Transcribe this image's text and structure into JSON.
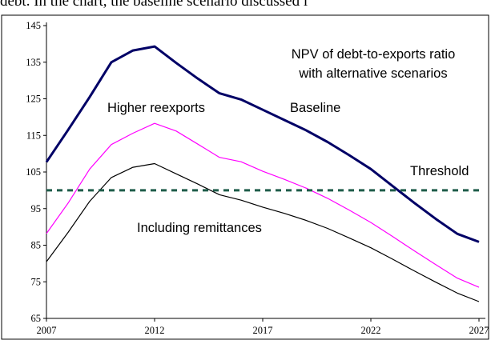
{
  "page_text_fragment": "debt. In the chart, the baseline scenario discussed i",
  "colors": {
    "baseline": "#000066",
    "higher_reexports": "#ff00ff",
    "including_remittances": "#000000",
    "threshold": "#1f5c4a"
  },
  "chart_data": {
    "type": "line",
    "title": "NPV of debt-to-exports ratio with alternative scenarios",
    "title_lines": [
      "NPV of debt-to-exports ratio",
      "with alternative scenarios"
    ],
    "xlabel": "",
    "ylabel": "",
    "xlim": [
      2007,
      2027
    ],
    "ylim": [
      65,
      145
    ],
    "x_ticks": [
      "2007",
      "2012",
      "2017",
      "2022",
      "2027"
    ],
    "y_ticks": [
      "65",
      "75",
      "85",
      "95",
      "105",
      "115",
      "125",
      "135",
      "145"
    ],
    "grid": false,
    "x": [
      2007,
      2008,
      2009,
      2010,
      2011,
      2012,
      2013,
      2014,
      2015,
      2016,
      2017,
      2018,
      2019,
      2020,
      2021,
      2022,
      2023,
      2024,
      2025,
      2026,
      2027
    ],
    "series": [
      {
        "name": "Baseline",
        "values": [
          107.7,
          116.5,
          125.5,
          135,
          138.2,
          139.3,
          134.8,
          130.5,
          126.5,
          124.8,
          122,
          119.2,
          116.4,
          113.2,
          109.6,
          105.8,
          101.2,
          96.6,
          92.2,
          88.1,
          85.9
        ]
      },
      {
        "name": "Higher reexports",
        "values": [
          88.2,
          96.5,
          105.8,
          112.5,
          115.6,
          118.3,
          116.2,
          112.6,
          109,
          107.8,
          105.2,
          103,
          100.6,
          97.8,
          94.6,
          91.2,
          87.4,
          83.5,
          79.7,
          76,
          73.5
        ]
      },
      {
        "name": "Including remittances",
        "values": [
          80.5,
          88.5,
          97,
          103.5,
          106.3,
          107.3,
          104.5,
          101.7,
          98.8,
          97.3,
          95.4,
          93.7,
          91.8,
          89.6,
          87,
          84.3,
          81.2,
          78,
          74.9,
          71.9,
          69.6
        ]
      },
      {
        "name": "Threshold",
        "values": [
          100,
          100,
          100,
          100,
          100,
          100,
          100,
          100,
          100,
          100,
          100,
          100,
          100,
          100,
          100,
          100,
          100,
          100,
          100,
          100,
          100
        ]
      }
    ]
  }
}
